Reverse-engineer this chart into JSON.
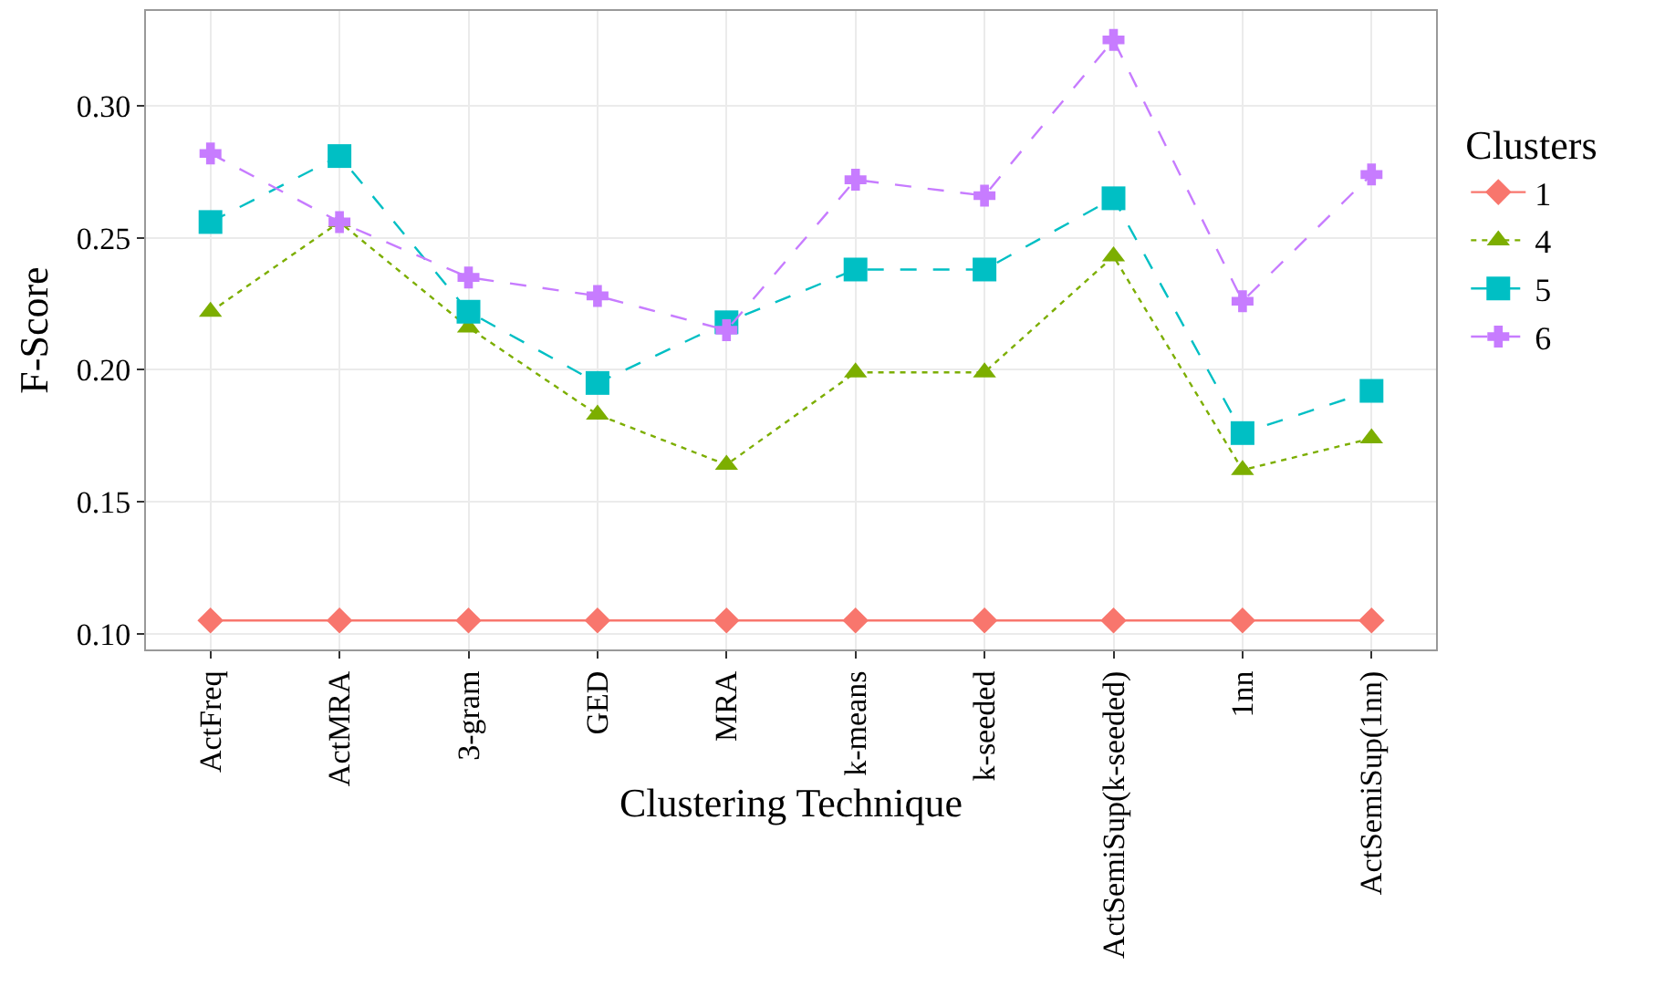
{
  "chart_data": {
    "type": "line",
    "xlabel": "Clustering Technique",
    "ylabel": "F-Score",
    "legend_title": "Clusters",
    "categories": [
      "ActFreq",
      "ActMRA",
      "3-gram",
      "GED",
      "MRA",
      "k-means",
      "k-seeded",
      "ActSemiSup(k-seeded)",
      "1nn",
      "ActSemiSup(1nn)"
    ],
    "series": [
      {
        "name": "1",
        "color": "#f8766d",
        "marker": "diamond",
        "line_style": "solid",
        "values": [
          0.105,
          0.105,
          0.105,
          0.105,
          0.105,
          0.105,
          0.105,
          0.105,
          0.105,
          0.105
        ]
      },
      {
        "name": "4",
        "color": "#7cae00",
        "marker": "triangle",
        "line_style": "dotted",
        "values": [
          0.222,
          0.256,
          0.216,
          0.183,
          0.164,
          0.199,
          0.199,
          0.243,
          0.162,
          0.174
        ]
      },
      {
        "name": "5",
        "color": "#00bfc4",
        "marker": "square",
        "line_style": "dashed",
        "values": [
          0.256,
          0.281,
          0.222,
          0.195,
          0.218,
          0.238,
          0.238,
          0.265,
          0.176,
          0.192
        ]
      },
      {
        "name": "6",
        "color": "#c77cff",
        "marker": "cross",
        "line_style": "dashed",
        "values": [
          0.282,
          0.256,
          0.235,
          0.228,
          0.215,
          0.272,
          0.266,
          0.325,
          0.226,
          0.274
        ]
      }
    ],
    "ylim": [
      0.094,
      0.336
    ],
    "yticks": [
      {
        "value": 0.1,
        "label": "0.10"
      },
      {
        "value": 0.15,
        "label": "0.15"
      },
      {
        "value": 0.2,
        "label": "0.20"
      },
      {
        "value": 0.25,
        "label": "0.25"
      },
      {
        "value": 0.3,
        "label": "0.30"
      }
    ],
    "grid": true,
    "legend": "right"
  }
}
